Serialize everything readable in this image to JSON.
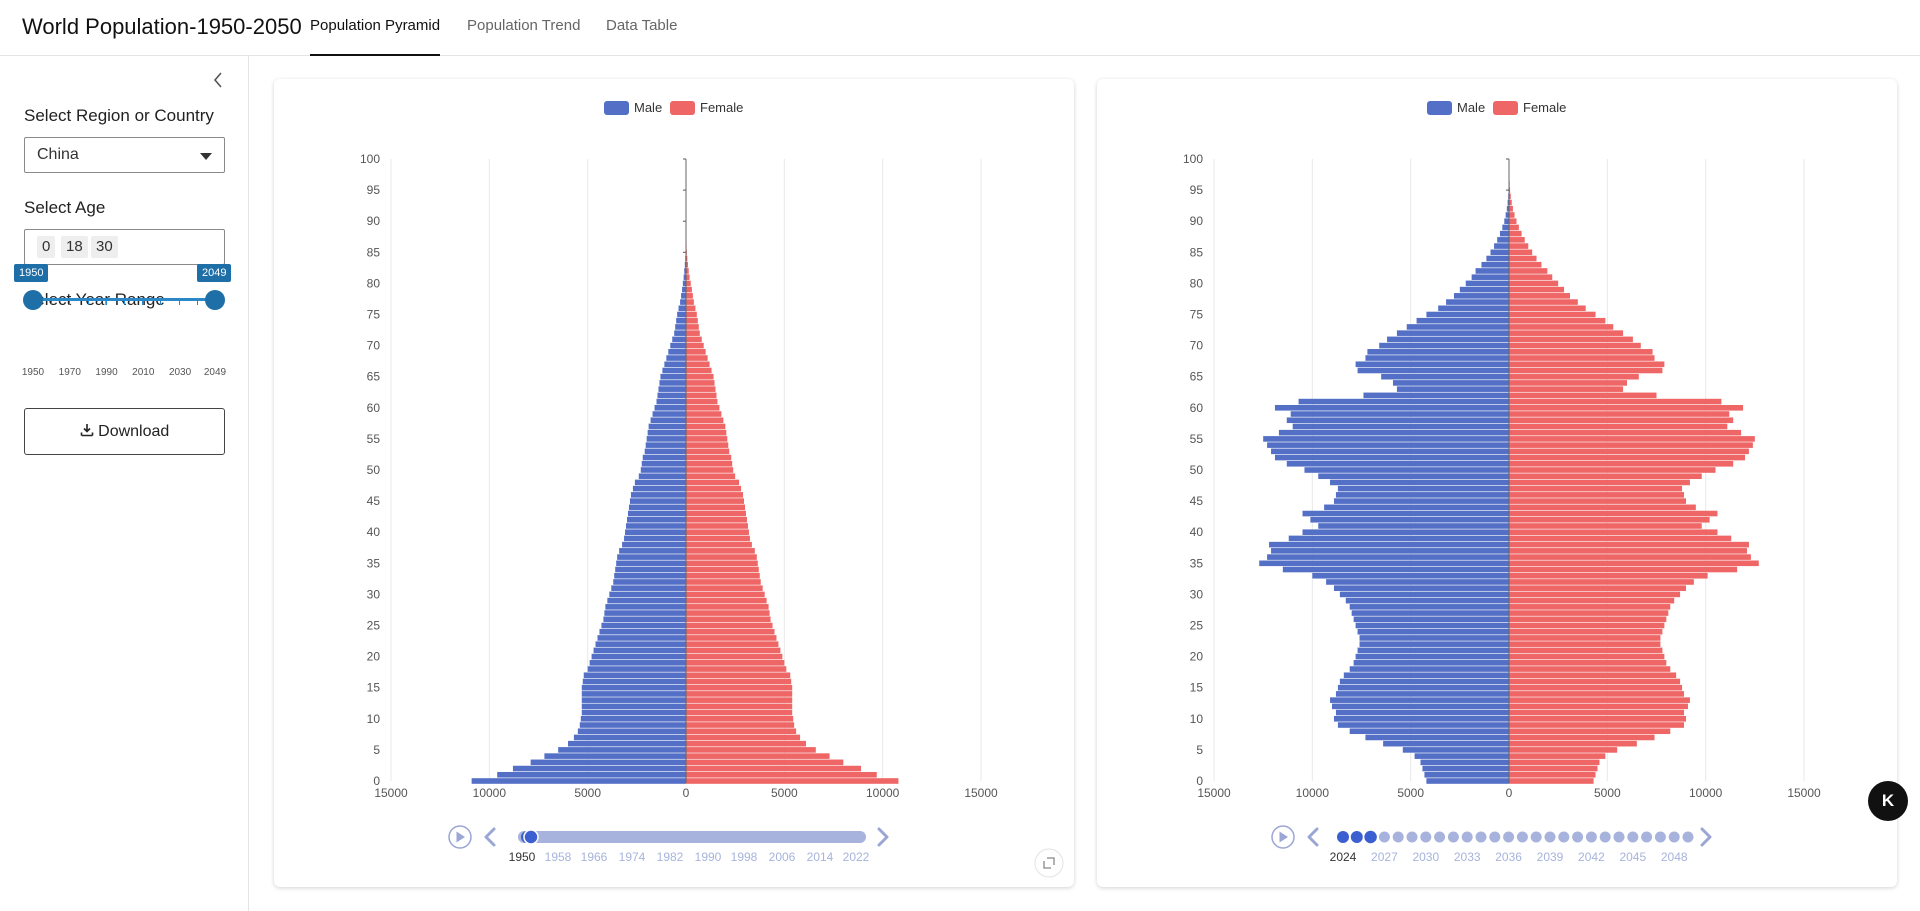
{
  "header": {
    "title": "World Population-1950-2050",
    "tabs": [
      {
        "label": "Population Pyramid",
        "active": true
      },
      {
        "label": "Population Trend",
        "active": false
      },
      {
        "label": "Data Table",
        "active": false
      }
    ]
  },
  "sidebar": {
    "collapse_icon": "chevron-left-icon",
    "region_label": "Select Region or Country",
    "region_value": "China",
    "age_label": "Select Age",
    "age_values": [
      "0",
      "18",
      "30"
    ],
    "year_label": "Select Year Range",
    "year_from": "1950",
    "year_to": "2049",
    "year_range": [
      1950,
      2049
    ],
    "year_ticks": [
      "1950",
      "1970",
      "1990",
      "2010",
      "2030",
      "2049"
    ],
    "download_label": "Download",
    "download_icon": "download-icon"
  },
  "colors": {
    "male": "#5470c6",
    "female": "#ee6666",
    "accent": "#1e6fa8"
  },
  "fab_label": "K",
  "chart_data": [
    {
      "type": "bar",
      "orientation": "horizontal",
      "legend": [
        "Male",
        "Female"
      ],
      "legend_position": "top-center",
      "y_ticks": [
        "0",
        "5",
        "10",
        "15",
        "20",
        "25",
        "30",
        "35",
        "40",
        "45",
        "50",
        "55",
        "60",
        "65",
        "70",
        "75",
        "80",
        "85",
        "90",
        "95",
        "100"
      ],
      "x_ticks": [
        "15000",
        "10000",
        "5000",
        "0",
        "5000",
        "10000",
        "15000"
      ],
      "xlim": [
        -15000,
        15000
      ],
      "ages": [
        0,
        1,
        2,
        3,
        4,
        5,
        6,
        7,
        8,
        9,
        10,
        11,
        12,
        13,
        14,
        15,
        16,
        17,
        18,
        19,
        20,
        21,
        22,
        23,
        24,
        25,
        26,
        27,
        28,
        29,
        30,
        31,
        32,
        33,
        34,
        35,
        36,
        37,
        38,
        39,
        40,
        41,
        42,
        43,
        44,
        45,
        46,
        47,
        48,
        49,
        50,
        51,
        52,
        53,
        54,
        55,
        56,
        57,
        58,
        59,
        60,
        61,
        62,
        63,
        64,
        65,
        66,
        67,
        68,
        69,
        70,
        71,
        72,
        73,
        74,
        75,
        76,
        77,
        78,
        79,
        80,
        81,
        82,
        83,
        84,
        85,
        86,
        87,
        88,
        89,
        90,
        91,
        92,
        93,
        94,
        95,
        96,
        97,
        98,
        99,
        100
      ],
      "male": [
        10900,
        9600,
        8800,
        7900,
        7200,
        6500,
        6000,
        5700,
        5500,
        5400,
        5350,
        5300,
        5300,
        5300,
        5300,
        5300,
        5250,
        5200,
        5000,
        4900,
        4800,
        4700,
        4600,
        4500,
        4400,
        4300,
        4200,
        4150,
        4100,
        4000,
        3900,
        3800,
        3700,
        3650,
        3600,
        3550,
        3500,
        3400,
        3250,
        3150,
        3100,
        3050,
        3000,
        2950,
        2900,
        2850,
        2800,
        2700,
        2600,
        2400,
        2300,
        2250,
        2200,
        2100,
        2050,
        2000,
        1950,
        1900,
        1800,
        1700,
        1600,
        1500,
        1450,
        1400,
        1350,
        1300,
        1200,
        1100,
        1000,
        900,
        800,
        700,
        600,
        550,
        500,
        450,
        380,
        300,
        250,
        200,
        160,
        120,
        90,
        60,
        40,
        25,
        15,
        10,
        5,
        3,
        2,
        1,
        1,
        0,
        0,
        0,
        0,
        0,
        0,
        0,
        0
      ],
      "female": [
        10800,
        9700,
        8900,
        8000,
        7300,
        6600,
        6100,
        5800,
        5600,
        5500,
        5450,
        5400,
        5400,
        5400,
        5400,
        5400,
        5350,
        5300,
        5100,
        5000,
        4900,
        4800,
        4700,
        4600,
        4500,
        4400,
        4300,
        4250,
        4200,
        4100,
        4000,
        3900,
        3800,
        3750,
        3700,
        3650,
        3600,
        3500,
        3350,
        3250,
        3200,
        3150,
        3100,
        3050,
        3000,
        2950,
        2900,
        2800,
        2700,
        2500,
        2400,
        2350,
        2300,
        2200,
        2150,
        2100,
        2050,
        2000,
        1900,
        1800,
        1700,
        1600,
        1550,
        1500,
        1450,
        1400,
        1300,
        1200,
        1100,
        1000,
        900,
        800,
        700,
        650,
        600,
        550,
        480,
        400,
        350,
        300,
        240,
        180,
        140,
        100,
        70,
        45,
        30,
        20,
        10,
        6,
        4,
        2,
        1,
        0,
        0,
        0,
        0,
        0,
        0,
        0,
        0
      ],
      "timeline": {
        "labels": [
          "1950",
          "1958",
          "1966",
          "1974",
          "1982",
          "1990",
          "1998",
          "2006",
          "2014",
          "2022"
        ],
        "current": "1950"
      }
    },
    {
      "type": "bar",
      "orientation": "horizontal",
      "legend": [
        "Male",
        "Female"
      ],
      "legend_position": "top-center",
      "y_ticks": [
        "0",
        "5",
        "10",
        "15",
        "20",
        "25",
        "30",
        "35",
        "40",
        "45",
        "50",
        "55",
        "60",
        "65",
        "70",
        "75",
        "80",
        "85",
        "90",
        "95",
        "100"
      ],
      "x_ticks": [
        "15000",
        "10000",
        "5000",
        "0",
        "5000",
        "10000",
        "15000"
      ],
      "xlim": [
        -15000,
        15000
      ],
      "ages": [
        0,
        1,
        2,
        3,
        4,
        5,
        6,
        7,
        8,
        9,
        10,
        11,
        12,
        13,
        14,
        15,
        16,
        17,
        18,
        19,
        20,
        21,
        22,
        23,
        24,
        25,
        26,
        27,
        28,
        29,
        30,
        31,
        32,
        33,
        34,
        35,
        36,
        37,
        38,
        39,
        40,
        41,
        42,
        43,
        44,
        45,
        46,
        47,
        48,
        49,
        50,
        51,
        52,
        53,
        54,
        55,
        56,
        57,
        58,
        59,
        60,
        61,
        62,
        63,
        64,
        65,
        66,
        67,
        68,
        69,
        70,
        71,
        72,
        73,
        74,
        75,
        76,
        77,
        78,
        79,
        80,
        81,
        82,
        83,
        84,
        85,
        86,
        87,
        88,
        89,
        90,
        91,
        92,
        93,
        94,
        95,
        96,
        97,
        98,
        99,
        100
      ],
      "male": [
        4200,
        4300,
        4400,
        4500,
        4800,
        5400,
        6400,
        7300,
        8100,
        8700,
        8900,
        8800,
        9000,
        9100,
        8800,
        8700,
        8600,
        8400,
        8100,
        7900,
        7800,
        7700,
        7600,
        7600,
        7700,
        7800,
        7900,
        8000,
        8100,
        8300,
        8600,
        8900,
        9300,
        10000,
        11500,
        12700,
        12300,
        12100,
        12200,
        11200,
        10500,
        9700,
        10100,
        10500,
        9400,
        8900,
        8800,
        8700,
        9100,
        9700,
        10400,
        11300,
        11900,
        12100,
        12300,
        12500,
        11700,
        11000,
        11300,
        11100,
        11900,
        10700,
        7400,
        5700,
        5900,
        6500,
        7700,
        7800,
        7300,
        7200,
        6600,
        6200,
        5700,
        5200,
        4700,
        4200,
        3600,
        3200,
        2800,
        2500,
        2200,
        1900,
        1700,
        1400,
        1150,
        940,
        760,
        600,
        460,
        340,
        240,
        170,
        110,
        70,
        40,
        25,
        15,
        8,
        4,
        2,
        1
      ],
      "female": [
        4300,
        4400,
        4500,
        4600,
        4900,
        5500,
        6500,
        7400,
        8200,
        8900,
        9000,
        8900,
        9100,
        9200,
        8900,
        8800,
        8700,
        8500,
        8200,
        8000,
        7900,
        7800,
        7700,
        7700,
        7800,
        7900,
        8000,
        8100,
        8200,
        8400,
        8700,
        9000,
        9400,
        10100,
        11600,
        12700,
        12300,
        12100,
        12200,
        11300,
        10600,
        9800,
        10200,
        10600,
        9500,
        9000,
        8900,
        8800,
        9200,
        9800,
        10500,
        11400,
        12000,
        12200,
        12400,
        12500,
        11800,
        11100,
        11400,
        11200,
        11900,
        10800,
        7500,
        5800,
        6000,
        6600,
        7800,
        7900,
        7400,
        7300,
        6700,
        6300,
        5800,
        5300,
        4900,
        4400,
        3900,
        3500,
        3100,
        2800,
        2500,
        2200,
        1950,
        1650,
        1400,
        1180,
        980,
        800,
        640,
        500,
        380,
        280,
        200,
        140,
        90,
        55,
        35,
        20,
        10,
        5,
        2
      ],
      "timeline": {
        "labels": [
          "2024",
          "2027",
          "2030",
          "2033",
          "2036",
          "2039",
          "2042",
          "2045",
          "2048"
        ],
        "current": "2024"
      }
    }
  ]
}
